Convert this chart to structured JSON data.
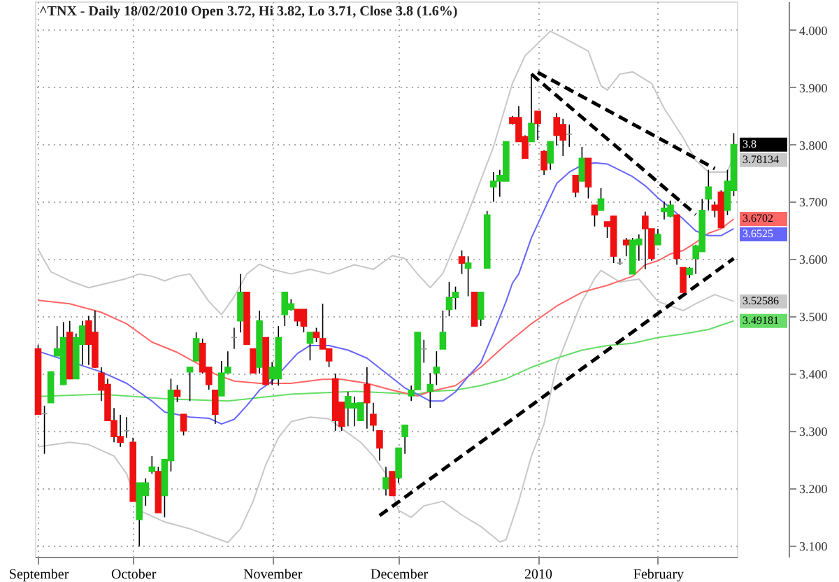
{
  "chart_data": {
    "type": "candlestick",
    "title": "^TNX - Daily 18/02/2010 Open 3.72, Hi 3.82, Lo 3.71, Close 3.8 (1.6%)",
    "categories": [
      "September",
      null,
      null,
      null,
      null,
      null,
      null,
      null,
      null,
      null,
      null,
      null,
      null,
      null,
      null,
      "October",
      null,
      null,
      null,
      null,
      null,
      null,
      null,
      null,
      null,
      null,
      null,
      null,
      null,
      null,
      null,
      null,
      null,
      null,
      null,
      null,
      null,
      "November",
      null,
      null,
      null,
      null,
      null,
      null,
      null,
      null,
      null,
      null,
      null,
      null,
      null,
      null,
      null,
      null,
      null,
      null,
      null,
      "December",
      null,
      null,
      null,
      null,
      null,
      null,
      null,
      null,
      null,
      null,
      null,
      null,
      null,
      null,
      null,
      null,
      null,
      null,
      null,
      null,
      null,
      "2010",
      null,
      null,
      null,
      null,
      null,
      null,
      null,
      null,
      null,
      null,
      null,
      null,
      null,
      null,
      null,
      null,
      null,
      null,
      "February",
      null,
      null,
      null,
      null,
      null,
      null,
      null,
      null,
      null,
      null,
      null,
      null
    ],
    "ohlc": [
      [
        3.443,
        3.45,
        3.329,
        3.329
      ],
      [
        3.33,
        3.344,
        3.26,
        3.33
      ],
      [
        3.349,
        3.403,
        3.349,
        3.403
      ],
      [
        3.431,
        3.483,
        3.431,
        3.443
      ],
      [
        3.381,
        3.49,
        3.38,
        3.463
      ],
      [
        3.472,
        3.492,
        3.39,
        3.391
      ],
      [
        3.391,
        3.47,
        3.391,
        3.463
      ],
      [
        3.451,
        3.492,
        3.415,
        3.483
      ],
      [
        3.492,
        3.501,
        3.415,
        3.451
      ],
      [
        3.472,
        3.51,
        3.41,
        3.411
      ],
      [
        3.401,
        3.411,
        3.352,
        3.371
      ],
      [
        3.381,
        3.391,
        3.318,
        3.318
      ],
      [
        3.318,
        3.34,
        3.28,
        3.29
      ],
      [
        3.29,
        3.328,
        3.272,
        3.28
      ],
      [
        3.3,
        3.324,
        3.288,
        3.3
      ],
      [
        3.28,
        3.288,
        3.177,
        3.177
      ],
      [
        3.145,
        3.209,
        3.098,
        3.209
      ],
      [
        3.187,
        3.217,
        3.169,
        3.209
      ],
      [
        3.229,
        3.256,
        3.225,
        3.237
      ],
      [
        3.229,
        3.237,
        3.157,
        3.157
      ],
      [
        3.187,
        3.25,
        3.149,
        3.25
      ],
      [
        3.248,
        3.391,
        3.229,
        3.371
      ],
      [
        3.371,
        3.38,
        3.35,
        3.36
      ],
      [
        3.329,
        3.329,
        3.292,
        3.3
      ],
      [
        3.403,
        3.411,
        3.352,
        3.411
      ],
      [
        3.422,
        3.472,
        3.422,
        3.461
      ],
      [
        3.453,
        3.461,
        3.4,
        3.403
      ],
      [
        3.411,
        3.411,
        3.372,
        3.381
      ],
      [
        3.371,
        3.371,
        3.312,
        3.329
      ],
      [
        3.361,
        3.422,
        3.361,
        3.401
      ],
      [
        3.401,
        3.439,
        3.401,
        3.411
      ],
      [
        3.463,
        3.48,
        3.443,
        3.463
      ],
      [
        3.492,
        3.574,
        3.472,
        3.542
      ],
      [
        3.542,
        3.542,
        3.451,
        3.451
      ],
      [
        3.443,
        3.443,
        3.401,
        3.401
      ],
      [
        3.411,
        3.51,
        3.4,
        3.492
      ],
      [
        3.463,
        3.463,
        3.38,
        3.381
      ],
      [
        3.391,
        3.42,
        3.38,
        3.411
      ],
      [
        3.391,
        3.483,
        3.379,
        3.463
      ],
      [
        3.503,
        3.542,
        3.483,
        3.542
      ],
      [
        3.512,
        3.53,
        3.51,
        3.522
      ],
      [
        3.512,
        3.512,
        3.483,
        3.492
      ],
      [
        3.512,
        3.512,
        3.472,
        3.483
      ],
      [
        3.453,
        3.472,
        3.423,
        3.472
      ],
      [
        3.472,
        3.48,
        3.455,
        3.463
      ],
      [
        3.461,
        3.522,
        3.443,
        3.443
      ],
      [
        3.443,
        3.443,
        3.411,
        3.422
      ],
      [
        3.391,
        3.4,
        3.3,
        3.318
      ],
      [
        3.35,
        3.35,
        3.3,
        3.308
      ],
      [
        3.34,
        3.368,
        3.308,
        3.36
      ],
      [
        3.34,
        3.36,
        3.308,
        3.348
      ],
      [
        3.318,
        3.349,
        3.318,
        3.349
      ],
      [
        3.381,
        3.411,
        3.304,
        3.349
      ],
      [
        3.329,
        3.349,
        3.3,
        3.31
      ],
      [
        3.3,
        3.3,
        3.248,
        3.27
      ],
      [
        3.199,
        3.237,
        3.187,
        3.218
      ],
      [
        3.229,
        3.229,
        3.187,
        3.187
      ],
      [
        3.218,
        3.27,
        3.209,
        3.27
      ],
      [
        3.29,
        3.31,
        3.26,
        3.31
      ],
      [
        3.361,
        3.379,
        3.352,
        3.371
      ],
      [
        3.372,
        3.472,
        3.372,
        3.472
      ],
      [
        3.443,
        3.459,
        3.419,
        3.443
      ],
      [
        3.369,
        3.401,
        3.34,
        3.381
      ],
      [
        3.401,
        3.439,
        3.38,
        3.411
      ],
      [
        3.443,
        3.51,
        3.443,
        3.472
      ],
      [
        3.512,
        3.56,
        3.5,
        3.533
      ],
      [
        3.533,
        3.552,
        3.512,
        3.542
      ],
      [
        3.604,
        3.615,
        3.574,
        3.593
      ],
      [
        3.584,
        3.605,
        3.535,
        3.593
      ],
      [
        3.542,
        3.542,
        3.483,
        3.483
      ],
      [
        3.495,
        3.542,
        3.483,
        3.542
      ],
      [
        3.584,
        3.684,
        3.584,
        3.677
      ],
      [
        3.726,
        3.752,
        3.7,
        3.736
      ],
      [
        3.736,
        3.756,
        3.709,
        3.746
      ],
      [
        3.736,
        3.805,
        3.736,
        3.805
      ],
      [
        3.847,
        3.85,
        3.835,
        3.837
      ],
      [
        3.847,
        3.867,
        3.805,
        3.805
      ],
      [
        3.814,
        3.816,
        3.776,
        3.776
      ],
      [
        3.805,
        3.923,
        3.805,
        3.837
      ],
      [
        3.858,
        3.858,
        3.808,
        3.837
      ],
      [
        3.788,
        3.79,
        3.747,
        3.756
      ],
      [
        3.768,
        3.805,
        3.756,
        3.805
      ],
      [
        3.847,
        3.855,
        3.798,
        3.816
      ],
      [
        3.835,
        3.845,
        3.78,
        3.808
      ],
      [
        3.818,
        3.835,
        3.796,
        3.818
      ],
      [
        3.746,
        3.746,
        3.708,
        3.717
      ],
      [
        3.736,
        3.796,
        3.736,
        3.776
      ],
      [
        3.776,
        3.776,
        3.706,
        3.726
      ],
      [
        3.694,
        3.694,
        3.657,
        3.677
      ],
      [
        3.685,
        3.724,
        3.685,
        3.705
      ],
      [
        3.665,
        3.665,
        3.637,
        3.657
      ],
      [
        3.675,
        3.675,
        3.593,
        3.605
      ],
      [
        3.593,
        3.601,
        3.59,
        3.593
      ],
      [
        3.633,
        3.637,
        3.605,
        3.625
      ],
      [
        3.574,
        3.637,
        3.574,
        3.633
      ],
      [
        3.625,
        3.643,
        3.597,
        3.635
      ],
      [
        3.675,
        3.683,
        3.582,
        3.653
      ],
      [
        3.653,
        3.653,
        3.597,
        3.601
      ],
      [
        3.625,
        3.653,
        3.625,
        3.643
      ],
      [
        3.683,
        3.7,
        3.669,
        3.689
      ],
      [
        3.675,
        3.702,
        3.673,
        3.694
      ],
      [
        3.677,
        3.677,
        3.59,
        3.601
      ],
      [
        3.585,
        3.585,
        3.542,
        3.542
      ],
      [
        3.573,
        3.586,
        3.567,
        3.584
      ],
      [
        3.601,
        3.625,
        3.574,
        3.623
      ],
      [
        3.613,
        3.705,
        3.613,
        3.685
      ],
      [
        3.705,
        3.756,
        3.685,
        3.726
      ],
      [
        3.694,
        3.7,
        3.673,
        3.685
      ],
      [
        3.717,
        3.72,
        3.655,
        3.655
      ],
      [
        3.685,
        3.756,
        3.677,
        3.736
      ],
      [
        3.72,
        3.82,
        3.71,
        3.8
      ]
    ],
    "colors": [
      "#ee1111",
      "#999999",
      "#22cc22",
      "#22cc22",
      "#22cc22",
      "#ee1111",
      "#22cc22",
      "#22cc22",
      "#ee1111",
      "#ee1111",
      "#ee1111",
      "#ee1111",
      "#ee1111",
      "#ee1111",
      "#999999",
      "#ee1111",
      "#22cc22",
      "#22cc22",
      "#22cc22",
      "#ee1111",
      "#22cc22",
      "#22cc22",
      "#ee1111",
      "#ee1111",
      "#22cc22",
      "#22cc22",
      "#ee1111",
      "#ee1111",
      "#ee1111",
      "#22cc22",
      "#22cc22",
      "#999999",
      "#22cc22",
      "#ee1111",
      "#ee1111",
      "#22cc22",
      "#ee1111",
      "#22cc22",
      "#22cc22",
      "#22cc22",
      "#22cc22",
      "#ee1111",
      "#ee1111",
      "#22cc22",
      "#ee1111",
      "#ee1111",
      "#ee1111",
      "#ee1111",
      "#ee1111",
      "#22cc22",
      "#22cc22",
      "#22cc22",
      "#ee1111",
      "#ee1111",
      "#ee1111",
      "#22cc22",
      "#ee1111",
      "#22cc22",
      "#22cc22",
      "#22cc22",
      "#22cc22",
      "#999999",
      "#22cc22",
      "#22cc22",
      "#22cc22",
      "#22cc22",
      "#22cc22",
      "#ee1111",
      "#22cc22",
      "#ee1111",
      "#22cc22",
      "#22cc22",
      "#22cc22",
      "#22cc22",
      "#22cc22",
      "#ee1111",
      "#ee1111",
      "#ee1111",
      "#22cc22",
      "#ee1111",
      "#ee1111",
      "#22cc22",
      "#ee1111",
      "#ee1111",
      "#999999",
      "#ee1111",
      "#22cc22",
      "#ee1111",
      "#ee1111",
      "#22cc22",
      "#ee1111",
      "#ee1111",
      "#999999",
      "#ee1111",
      "#22cc22",
      "#22cc22",
      "#ee1111",
      "#ee1111",
      "#22cc22",
      "#22cc22",
      "#22cc22",
      "#ee1111",
      "#ee1111",
      "#22cc22",
      "#22cc22",
      "#22cc22",
      "#22cc22",
      "#ee1111",
      "#ee1111",
      "#22cc22",
      "#22cc22"
    ],
    "series": [
      {
        "type": "line",
        "color": "#c8c8c8",
        "values": [
          3.617,
          null,
          3.578,
          null,
          null,
          3.562,
          null,
          null,
          3.55,
          null,
          null,
          null,
          null,
          null,
          3.566,
          null,
          3.574,
          null,
          3.57,
          null,
          3.562,
          null,
          3.57,
          null,
          3.574,
          null,
          null,
          3.526,
          null,
          3.503,
          null,
          3.534,
          null,
          3.574,
          null,
          3.591,
          null,
          3.582,
          null,
          null,
          3.574,
          null,
          null,
          3.582,
          null,
          null,
          3.574,
          null,
          null,
          null,
          3.59,
          null,
          null,
          3.582,
          null,
          null,
          3.606,
          null,
          3.601,
          null,
          3.574,
          null,
          3.55,
          null,
          3.575,
          null,
          null,
          3.653,
          null,
          3.709,
          null,
          null,
          3.796,
          null,
          null,
          3.907,
          null,
          3.955,
          null,
          null,
          null,
          3.998,
          null,
          3.987,
          null,
          null,
          null,
          3.963,
          null,
          3.903,
          3.895,
          null,
          3.923,
          null,
          3.927,
          null,
          null,
          3.907,
          null,
          3.863,
          null,
          null,
          3.812,
          null,
          3.772,
          null,
          3.752,
          null,
          null,
          3.752,
          3.781
        ]
      },
      {
        "type": "line",
        "color": "#c8c8c8",
        "values": [
          3.272,
          null,
          null,
          null,
          null,
          3.28,
          null,
          null,
          3.276,
          null,
          null,
          null,
          3.256,
          null,
          3.225,
          null,
          3.161,
          null,
          null,
          null,
          3.141,
          null,
          null,
          null,
          3.129,
          null,
          null,
          null,
          3.113,
          null,
          3.105,
          null,
          3.129,
          null,
          3.177,
          null,
          3.241,
          null,
          3.288,
          null,
          3.316,
          null,
          null,
          3.324,
          null,
          null,
          3.321,
          null,
          3.304,
          null,
          null,
          3.28,
          null,
          3.256,
          null,
          3.225,
          null,
          3.161,
          null,
          3.149,
          null,
          3.169,
          null,
          null,
          3.177,
          null,
          null,
          3.153,
          null,
          null,
          3.133,
          null,
          null,
          3.106,
          3.11,
          null,
          3.177,
          null,
          3.256,
          null,
          3.312,
          null,
          3.415,
          null,
          3.471,
          null,
          3.526,
          null,
          3.566,
          3.58,
          null,
          null,
          3.56,
          null,
          null,
          3.565,
          null,
          null,
          3.526,
          null,
          null,
          null,
          3.51,
          null,
          3.522,
          null,
          null,
          3.538,
          null,
          null,
          3.526
        ]
      },
      {
        "type": "line",
        "color": "#66dd66",
        "values": [
          3.36,
          null,
          null,
          null,
          null,
          null,
          null,
          null,
          null,
          null,
          3.364,
          null,
          null,
          null,
          null,
          null,
          null,
          null,
          null,
          null,
          3.356,
          null,
          null,
          null,
          null,
          null,
          null,
          null,
          null,
          null,
          3.352,
          null,
          null,
          null,
          null,
          null,
          null,
          null,
          null,
          null,
          3.364,
          null,
          null,
          null,
          null,
          null,
          null,
          null,
          null,
          null,
          3.369,
          null,
          null,
          null,
          null,
          null,
          null,
          null,
          null,
          null,
          3.364,
          null,
          3.369,
          null,
          null,
          null,
          3.371,
          null,
          null,
          null,
          3.379,
          null,
          null,
          null,
          3.391,
          null,
          null,
          null,
          3.411,
          null,
          null,
          null,
          3.427,
          null,
          null,
          null,
          3.441,
          null,
          null,
          null,
          3.449,
          null,
          null,
          null,
          3.453,
          null,
          null,
          null,
          3.463,
          null,
          null,
          null,
          3.469,
          null,
          null,
          null,
          3.477,
          null,
          null,
          null,
          3.492
        ]
      },
      {
        "type": "line",
        "color": "#ff6666",
        "values": [
          3.528,
          null,
          null,
          null,
          null,
          3.522,
          null,
          null,
          null,
          null,
          3.507,
          null,
          null,
          null,
          3.487,
          null,
          null,
          null,
          3.455,
          null,
          null,
          null,
          3.437,
          null,
          null,
          3.419,
          null,
          null,
          3.399,
          null,
          null,
          3.387,
          null,
          null,
          null,
          3.383,
          null,
          null,
          null,
          null,
          3.383,
          null,
          null,
          null,
          null,
          3.39,
          null,
          null,
          3.39,
          null,
          null,
          null,
          3.383,
          null,
          null,
          null,
          3.371,
          null,
          null,
          null,
          3.361,
          null,
          3.369,
          null,
          null,
          null,
          3.379,
          null,
          null,
          null,
          3.411,
          null,
          null,
          null,
          3.451,
          null,
          null,
          null,
          3.487,
          null,
          null,
          null,
          3.518,
          null,
          null,
          null,
          3.542,
          null,
          null,
          null,
          3.554,
          null,
          null,
          null,
          3.57,
          null,
          3.59,
          null,
          3.597,
          null,
          3.609,
          null,
          3.615,
          null,
          3.629,
          null,
          3.645,
          null,
          3.653,
          null,
          3.67
        ]
      },
      {
        "type": "line",
        "color": "#6666ff",
        "values": [
          3.439,
          null,
          null,
          null,
          null,
          null,
          null,
          null,
          null,
          null,
          3.403,
          null,
          null,
          null,
          3.383,
          null,
          null,
          null,
          3.352,
          null,
          3.333,
          null,
          null,
          null,
          3.324,
          null,
          null,
          3.322,
          null,
          3.312,
          null,
          3.32,
          null,
          3.344,
          null,
          3.371,
          null,
          3.387,
          null,
          3.411,
          null,
          3.435,
          null,
          3.449,
          null,
          null,
          3.449,
          null,
          null,
          3.441,
          null,
          null,
          3.427,
          null,
          null,
          3.401,
          null,
          null,
          3.375,
          null,
          3.364,
          null,
          3.352,
          null,
          3.352,
          null,
          3.368,
          null,
          3.395,
          null,
          3.419,
          null,
          3.471,
          null,
          3.526,
          3.558,
          3.574,
          null,
          3.637,
          null,
          3.685,
          null,
          3.732,
          null,
          3.752,
          null,
          3.764,
          null,
          3.768,
          null,
          3.766,
          null,
          3.755,
          null,
          3.744,
          null,
          3.728,
          null,
          3.707,
          null,
          3.689,
          null,
          3.67,
          null,
          3.649,
          null,
          3.641,
          null,
          3.641,
          null,
          3.653
        ]
      },
      {
        "type": "line",
        "color": "#000000",
        "line_style": "dashed",
        "values": [
          null,
          null,
          null,
          null,
          null,
          null,
          null,
          null,
          null,
          null,
          null,
          null,
          null,
          null,
          null,
          null,
          null,
          null,
          null,
          null,
          null,
          null,
          null,
          null,
          null,
          null,
          null,
          null,
          null,
          null,
          null,
          null,
          null,
          null,
          null,
          null,
          null,
          null,
          null,
          null,
          null,
          null,
          null,
          null,
          null,
          null,
          null,
          null,
          null,
          null,
          null,
          null,
          null,
          null,
          3.152,
          null,
          null,
          null,
          null,
          null,
          null,
          null,
          null,
          null,
          null,
          null,
          null,
          null,
          null,
          null,
          null,
          null,
          null,
          null,
          null,
          null,
          null,
          null,
          null,
          null,
          null,
          null,
          null,
          null,
          null,
          null,
          null,
          null,
          null,
          null,
          null,
          null,
          null,
          null,
          null,
          null,
          null,
          null,
          null,
          null,
          null,
          null,
          null,
          null,
          null,
          null,
          null,
          null,
          null,
          null,
          3.601
        ]
      },
      {
        "type": "line",
        "color": "#000000",
        "line_style": "dashed",
        "values": [
          null,
          null,
          null,
          null,
          null,
          null,
          null,
          null,
          null,
          null,
          null,
          null,
          null,
          null,
          null,
          null,
          null,
          null,
          null,
          null,
          null,
          null,
          null,
          null,
          null,
          null,
          null,
          null,
          null,
          null,
          null,
          null,
          null,
          null,
          null,
          null,
          null,
          null,
          null,
          null,
          null,
          null,
          null,
          null,
          null,
          null,
          null,
          null,
          null,
          null,
          null,
          null,
          null,
          null,
          null,
          null,
          null,
          null,
          null,
          null,
          null,
          null,
          null,
          null,
          null,
          null,
          null,
          null,
          null,
          null,
          null,
          null,
          null,
          null,
          null,
          null,
          null,
          null,
          null,
          3.926,
          null,
          null,
          null,
          null,
          null,
          null,
          null,
          null,
          null,
          null,
          null,
          null,
          null,
          null,
          null,
          null,
          null,
          null,
          null,
          null,
          null,
          null,
          null,
          null,
          null,
          null,
          null,
          3.758,
          null,
          null,
          null
        ]
      },
      {
        "type": "line",
        "color": "#000000",
        "line_style": "dashed",
        "values": [
          null,
          null,
          null,
          null,
          null,
          null,
          null,
          null,
          null,
          null,
          null,
          null,
          null,
          null,
          null,
          null,
          null,
          null,
          null,
          null,
          null,
          null,
          null,
          null,
          null,
          null,
          null,
          null,
          null,
          null,
          null,
          null,
          null,
          null,
          null,
          null,
          null,
          null,
          null,
          null,
          null,
          null,
          null,
          null,
          null,
          null,
          null,
          null,
          null,
          null,
          null,
          null,
          null,
          null,
          null,
          null,
          null,
          null,
          null,
          null,
          null,
          null,
          null,
          null,
          null,
          null,
          null,
          null,
          null,
          null,
          null,
          null,
          null,
          null,
          null,
          null,
          null,
          null,
          3.923,
          null,
          null,
          null,
          null,
          null,
          null,
          null,
          null,
          null,
          null,
          null,
          null,
          null,
          null,
          null,
          null,
          null,
          null,
          null,
          null,
          null,
          null,
          null,
          null,
          null,
          3.678,
          null,
          null,
          null,
          null,
          null,
          null
        ]
      }
    ],
    "annotations": [
      "3.8",
      "3.78134",
      "3.6702",
      "3.6525",
      "3.52586",
      "3.49181"
    ],
    "ylim": [
      3.08,
      4.05
    ],
    "yticks": [
      {
        "value": 3.1,
        "label": "3.100"
      },
      {
        "value": 3.2,
        "label": "3.200"
      },
      {
        "value": 3.3,
        "label": "3.300"
      },
      {
        "value": 3.4,
        "label": "3.400"
      },
      {
        "value": 3.5,
        "label": "3.500"
      },
      {
        "value": 3.6,
        "label": "3.600"
      },
      {
        "value": 3.7,
        "label": "3.700"
      },
      {
        "value": 3.8,
        "label": "3.800"
      },
      {
        "value": 3.9,
        "label": "3.900"
      },
      {
        "value": 4.0,
        "label": "4.000"
      }
    ],
    "grid": true
  }
}
